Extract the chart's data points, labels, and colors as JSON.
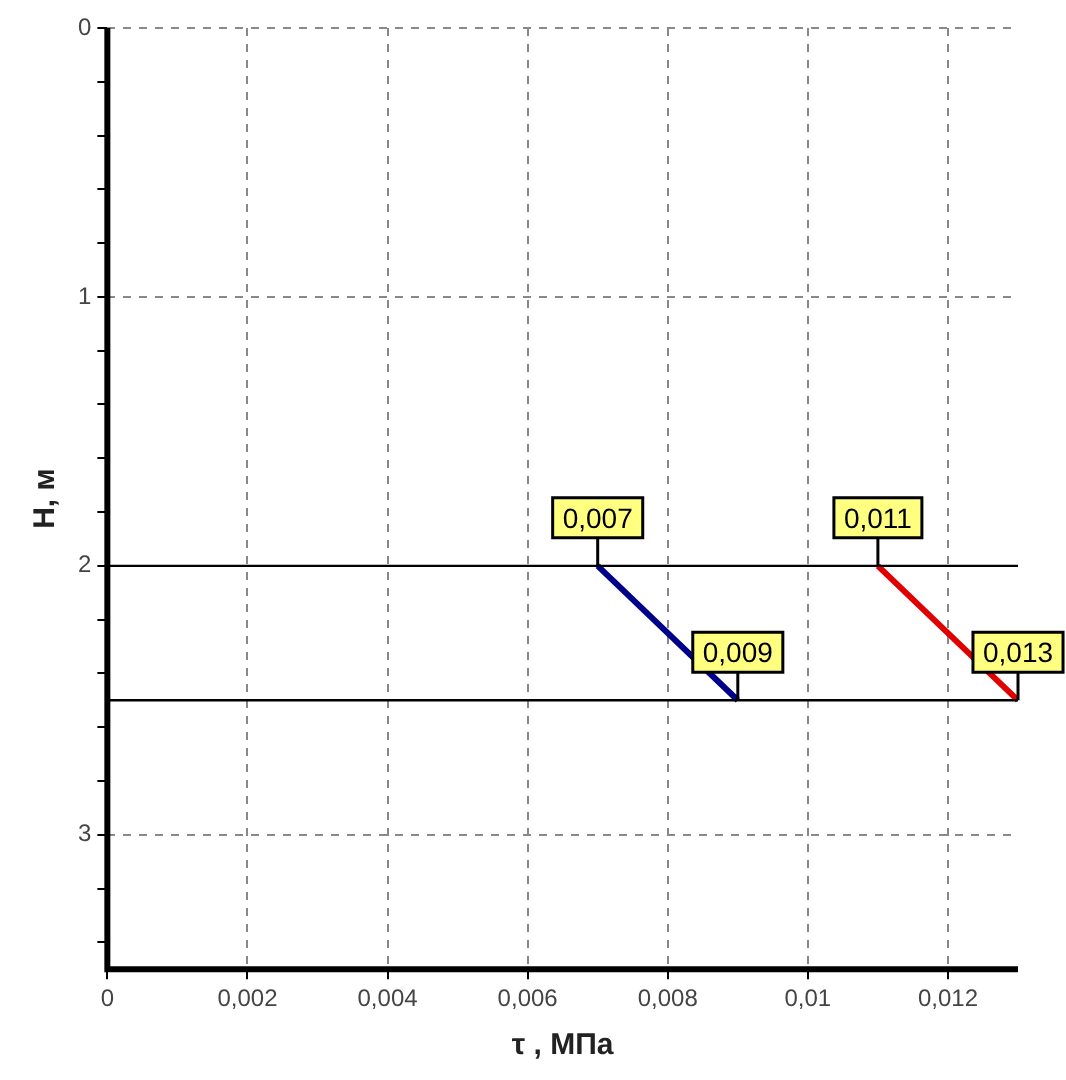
{
  "chart_data": {
    "type": "line",
    "xlabel": "τ , МПа",
    "ylabel": "H, м",
    "xlim": [
      0,
      0.013
    ],
    "xticks": [
      0,
      {
        "value": 0.002,
        "label": "0,002"
      },
      {
        "value": 0.004,
        "label": "0,004"
      },
      {
        "value": 0.006,
        "label": "0,006"
      },
      {
        "value": 0.008,
        "label": "0,008"
      },
      {
        "value": 0.01,
        "label": "0,01"
      },
      {
        "value": 0.012,
        "label": "0,012"
      }
    ],
    "ylim": [
      3.5,
      0
    ],
    "yticks": [
      0,
      {
        "value": 0.2,
        "label": null
      },
      {
        "value": 0.4,
        "label": null
      },
      {
        "value": 0.6,
        "label": null
      },
      {
        "value": 0.8,
        "label": null
      },
      1,
      {
        "value": 1.2,
        "label": null
      },
      {
        "value": 1.4,
        "label": null
      },
      {
        "value": 1.6,
        "label": null
      },
      {
        "value": 1.8,
        "label": null
      },
      2,
      {
        "value": 2.2,
        "label": null
      },
      {
        "value": 2.4,
        "label": null
      },
      {
        "value": 2.6,
        "label": null
      },
      {
        "value": 2.8,
        "label": null
      },
      3,
      {
        "value": 3.2,
        "label": null
      },
      {
        "value": 3.4,
        "label": null
      }
    ],
    "series": [
      {
        "color": "#00008b",
        "x": [
          0.007,
          0.009
        ],
        "values": [
          2,
          2.5
        ]
      },
      {
        "color": "#e00000",
        "x": [
          0.011,
          0.013
        ],
        "values": [
          2,
          2.5
        ]
      }
    ],
    "annotations": [
      {
        "text": "0,007",
        "x": 0.007,
        "y": 2
      },
      {
        "text": "0,009",
        "x": 0.009,
        "y": 2.5
      },
      {
        "text": "0,011",
        "x": 0.011,
        "y": 2
      },
      {
        "text": "0,013",
        "x": 0.013,
        "y": 2.5
      }
    ],
    "ref_lines": [
      {
        "axis": "y",
        "value": 2,
        "color": "#000000"
      },
      {
        "axis": "y",
        "value": 2.5,
        "color": "#000000"
      }
    ],
    "grid": true,
    "legend": false,
    "marker": "none",
    "line_style": "solid"
  }
}
